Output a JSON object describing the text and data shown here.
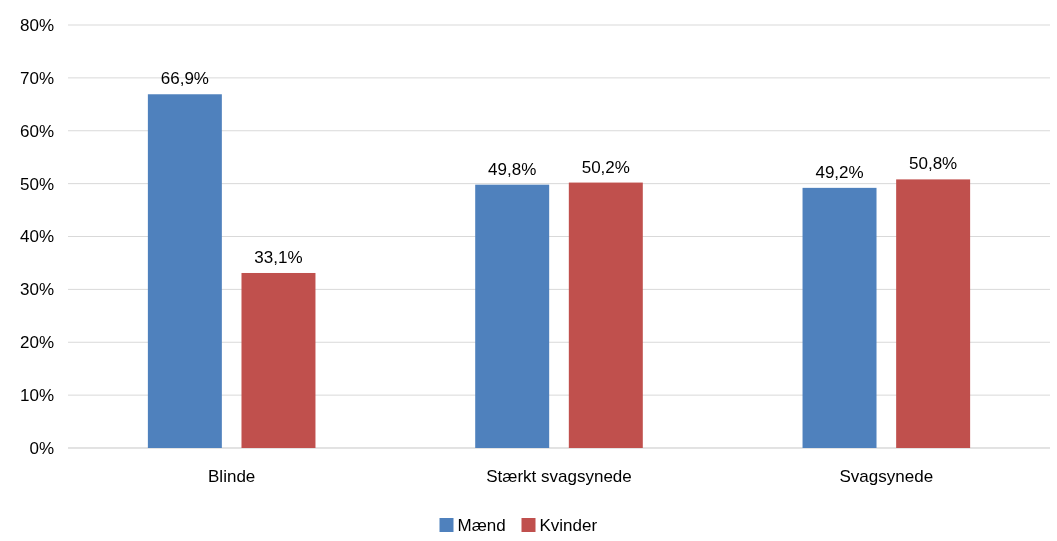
{
  "chart_data": {
    "type": "bar",
    "categories": [
      "Blinde",
      "Stærkt svagsynede",
      "Svagsynede"
    ],
    "series": [
      {
        "name": "Mænd",
        "color": "#4f81bd",
        "values": [
          66.9,
          49.8,
          49.2
        ],
        "value_labels": [
          "66,9%",
          "49,8%",
          "49,2%"
        ]
      },
      {
        "name": "Kvinder",
        "color": "#c0504d",
        "values": [
          33.1,
          50.2,
          50.8
        ],
        "value_labels": [
          "33,1%",
          "50,2%",
          "50,8%"
        ]
      }
    ],
    "ylim": [
      0,
      80
    ],
    "yticks": [
      {
        "value": 0,
        "label": "0%"
      },
      {
        "value": 10,
        "label": "10%"
      },
      {
        "value": 20,
        "label": "20%"
      },
      {
        "value": 30,
        "label": "30%"
      },
      {
        "value": 40,
        "label": "40%"
      },
      {
        "value": 50,
        "label": "50%"
      },
      {
        "value": 60,
        "label": "60%"
      },
      {
        "value": 70,
        "label": "70%"
      },
      {
        "value": 80,
        "label": "80%"
      }
    ],
    "grid": "y",
    "legend": "bottom"
  }
}
